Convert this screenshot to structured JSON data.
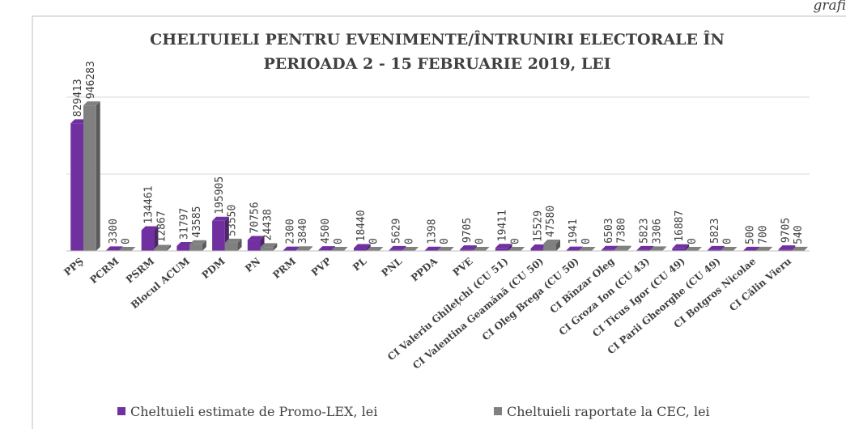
{
  "corner_text": "grafi",
  "chart_data": {
    "type": "bar",
    "title": [
      "CHELTUIELI PENTRU EVENIMENTE/ÎNTRUNIRI     ELECTORALE ÎN",
      "PERIOADA 2 - 15 FEBRUARIE 2019, LEI"
    ],
    "categories": [
      "PPŞ",
      "PCRM",
      "PSRM",
      "Blocul ACUM",
      "PDM",
      "PN",
      "PRM",
      "PVP",
      "PL",
      "PNL",
      "PPDA",
      "PVE",
      "CI Valeriu Ghilețchi (CU 51)",
      "CI Valentina Geamănă (CU 50)",
      "CI Oleg Brega (CU 50)",
      "CI Bînzar Oleg",
      "CI Groza Ion (CU 43)",
      "CI Ticus Igor (CU 49)",
      "CI Parii Gheorghe (CU 49)",
      "CI Botgros Nicolae",
      "CI Călin Vieru"
    ],
    "series": [
      {
        "name": "Cheltuieli estimate de Promo-LEX, lei",
        "color": "#7030a0",
        "values": [
          829413,
          3300,
          134461,
          31797,
          195905,
          70756,
          2300,
          4500,
          18440,
          5629,
          1398,
          9705,
          19411,
          15529,
          1941,
          6503,
          5823,
          16887,
          5823,
          500,
          9705
        ]
      },
      {
        "name": "Cheltuieli raportate la CEC, lei",
        "color": "#808080",
        "values": [
          946283,
          0,
          12867,
          43585,
          53550,
          24438,
          3840,
          0,
          0,
          0,
          0,
          0,
          0,
          47580,
          0,
          7380,
          3306,
          0,
          0,
          700,
          540
        ]
      }
    ],
    "ylim": [
      0,
      1000000
    ],
    "yticks": [
      0,
      500000,
      1000000
    ],
    "grid": true,
    "legend": "bottom"
  }
}
